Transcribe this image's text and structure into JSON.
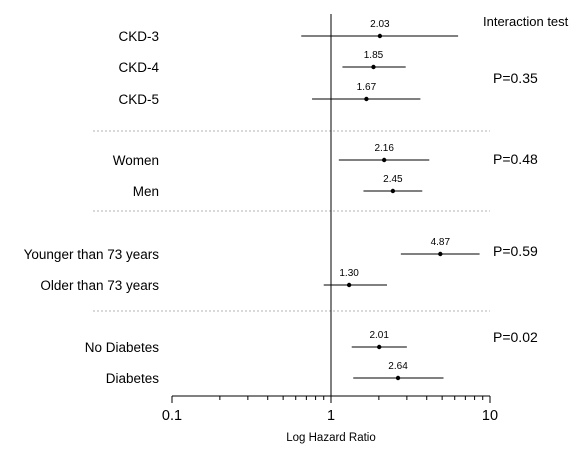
{
  "chart_data": {
    "type": "forest",
    "xlabel": "Log Hazard Ratio",
    "x_scale": "log",
    "xlim": [
      0.1,
      10
    ],
    "x_ticks": [
      "0.1",
      "1",
      "10"
    ],
    "reference_line": 1,
    "interaction_header": "Interaction test",
    "groups": [
      {
        "p_value": "P=0.35",
        "rows": [
          {
            "label": "CKD-3",
            "estimate": 2.03,
            "estimate_label": "2.03",
            "ci": [
              0.65,
              6.3
            ]
          },
          {
            "label": "CKD-4",
            "estimate": 1.85,
            "estimate_label": "1.85",
            "ci": [
              1.18,
              2.95
            ]
          },
          {
            "label": "CKD-5",
            "estimate": 1.67,
            "estimate_label": "1.67",
            "ci": [
              0.76,
              3.65
            ]
          }
        ]
      },
      {
        "p_value": "P=0.48",
        "rows": [
          {
            "label": "Women",
            "estimate": 2.16,
            "estimate_label": "2.16",
            "ci": [
              1.12,
              4.15
            ]
          },
          {
            "label": "Men",
            "estimate": 2.45,
            "estimate_label": "2.45",
            "ci": [
              1.6,
              3.75
            ]
          }
        ]
      },
      {
        "p_value": "P=0.59",
        "rows": [
          {
            "label": "Younger than 73 years",
            "estimate": 4.87,
            "estimate_label": "4.87",
            "ci": [
              2.75,
              8.6
            ]
          },
          {
            "label": "Older than 73 years",
            "estimate": 1.3,
            "estimate_label": "1.30",
            "ci": [
              0.9,
              2.25
            ]
          }
        ]
      },
      {
        "p_value": "P=0.02",
        "rows": [
          {
            "label": "No Diabetes",
            "estimate": 2.01,
            "estimate_label": "2.01",
            "ci": [
              1.35,
              3.0
            ]
          },
          {
            "label": "Diabetes",
            "estimate": 2.64,
            "estimate_label": "2.64",
            "ci": [
              1.38,
              5.1
            ]
          }
        ]
      }
    ]
  }
}
